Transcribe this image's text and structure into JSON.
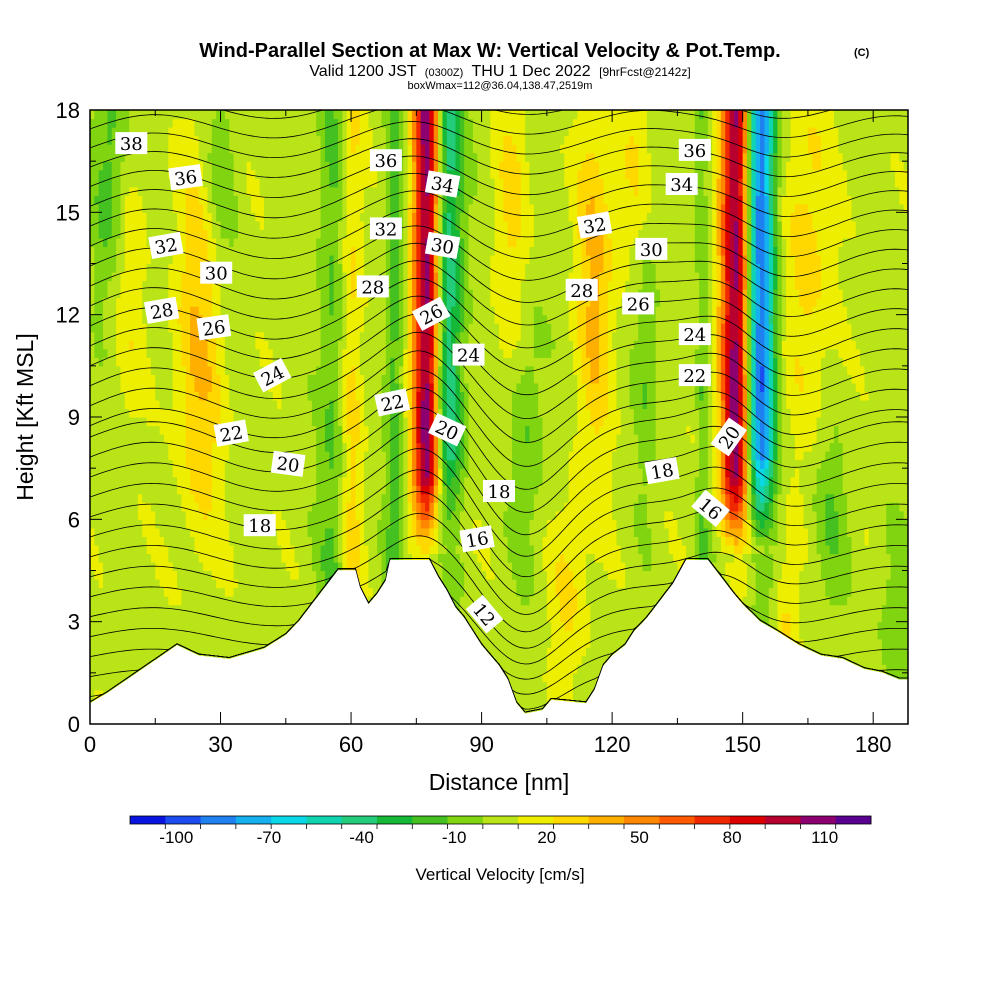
{
  "chart_data": {
    "type": "heatmap",
    "title": "Wind-Parallel Section at Max W: Vertical Velocity & Pot.Temp.",
    "title_mark": "(C)",
    "subtitle_main": "Valid 1200 JST",
    "subtitle_z": "(0300Z)",
    "subtitle_date": "THU 1 Dec 2022",
    "subtitle_fcst": "[9hrFcst@2142z]",
    "subtitle2": "boxWmax=112@36.04,138.47,2519m",
    "xlabel": "Distance [nm]",
    "ylabel": "Height [Kft MSL]",
    "xlim": [
      0,
      188
    ],
    "ylim": [
      0,
      18
    ],
    "xticks": [
      "0",
      "30",
      "60",
      "90",
      "120",
      "150",
      "180"
    ],
    "yticks": [
      "0",
      "3",
      "6",
      "9",
      "12",
      "15",
      "18"
    ],
    "xtick_values": [
      0,
      30,
      60,
      90,
      120,
      150,
      180
    ],
    "ytick_values": [
      0,
      3,
      6,
      9,
      12,
      15,
      18
    ],
    "colorbar": {
      "title": "Vertical Velocity [cm/s]",
      "range": [
        -115,
        125
      ],
      "labels": [
        "-100",
        "-70",
        "-40",
        "-10",
        "20",
        "50",
        "80",
        "110"
      ],
      "label_values": [
        -100,
        -70,
        -40,
        -10,
        20,
        50,
        80,
        110
      ],
      "colors": [
        "#0a14e0",
        "#1a4cf0",
        "#1f80f0",
        "#14b0f0",
        "#0ad8e6",
        "#10d4b0",
        "#22cc7a",
        "#16b838",
        "#44c020",
        "#80d410",
        "#b8e418",
        "#eeee00",
        "#ffd800",
        "#ffaf00",
        "#ff8700",
        "#ff5a00",
        "#f02800",
        "#dc0000",
        "#b80030",
        "#8c0070",
        "#5a0090"
      ]
    },
    "terrain": [
      [
        0,
        0.6
      ],
      [
        4,
        0.9
      ],
      [
        8,
        1.25
      ],
      [
        12,
        1.6
      ],
      [
        16,
        1.95
      ],
      [
        20,
        2.3
      ],
      [
        25,
        2.0
      ],
      [
        32,
        1.9
      ],
      [
        40,
        2.2
      ],
      [
        45,
        2.6
      ],
      [
        48,
        3.0
      ],
      [
        51,
        3.5
      ],
      [
        54,
        4.0
      ],
      [
        57,
        4.5
      ],
      [
        61,
        4.5
      ],
      [
        62,
        4.0
      ],
      [
        64,
        3.5
      ],
      [
        66,
        3.8
      ],
      [
        68,
        4.2
      ],
      [
        69,
        4.8
      ],
      [
        78,
        4.8
      ],
      [
        80,
        4.3
      ],
      [
        82,
        3.9
      ],
      [
        84,
        3.4
      ],
      [
        86,
        3.1
      ],
      [
        88,
        2.7
      ],
      [
        90,
        2.3
      ],
      [
        92,
        2.0
      ],
      [
        94,
        1.7
      ],
      [
        96,
        1.3
      ],
      [
        98,
        0.6
      ],
      [
        100,
        0.3
      ],
      [
        104,
        0.4
      ],
      [
        106,
        0.7
      ],
      [
        110,
        0.65
      ],
      [
        114,
        0.6
      ],
      [
        116,
        1.0
      ],
      [
        118,
        1.7
      ],
      [
        120,
        2.0
      ],
      [
        123,
        2.3
      ],
      [
        125,
        2.7
      ],
      [
        128,
        3.1
      ],
      [
        131,
        3.6
      ],
      [
        134,
        4.1
      ],
      [
        137,
        4.8
      ],
      [
        142,
        4.8
      ],
      [
        145,
        4.3
      ],
      [
        148,
        3.8
      ],
      [
        150,
        3.5
      ],
      [
        154,
        3.0
      ],
      [
        158,
        2.7
      ],
      [
        163,
        2.3
      ],
      [
        168,
        2.0
      ],
      [
        173,
        1.9
      ],
      [
        178,
        1.6
      ],
      [
        182,
        1.5
      ],
      [
        186,
        1.3
      ],
      [
        188,
        1.3
      ]
    ],
    "updrafts": [
      {
        "center_x": 77.5,
        "peak_cm_s": 112,
        "width_nm": 2.2
      },
      {
        "center_x": 148.5,
        "peak_cm_s": 105,
        "width_nm": 2.4
      }
    ],
    "downdrafts": [
      {
        "center_x": 82,
        "min_cm_s": -55,
        "width_nm": 2.6
      },
      {
        "center_x": 154,
        "min_cm_s": -100,
        "width_nm": 2.4
      }
    ],
    "contour_labels": [
      {
        "text": "38",
        "x": 9.5,
        "y": 17.0,
        "angle": 0
      },
      {
        "text": "36",
        "x": 22,
        "y": 16.0,
        "angle": -8
      },
      {
        "text": "32",
        "x": 17.5,
        "y": 14.0,
        "angle": -10
      },
      {
        "text": "30",
        "x": 29,
        "y": 13.2,
        "angle": 0
      },
      {
        "text": "28",
        "x": 16.5,
        "y": 12.1,
        "angle": -10
      },
      {
        "text": "26",
        "x": 28.5,
        "y": 11.6,
        "angle": -8
      },
      {
        "text": "24",
        "x": 42,
        "y": 10.2,
        "angle": -28
      },
      {
        "text": "22",
        "x": 32.5,
        "y": 8.5,
        "angle": -10
      },
      {
        "text": "20",
        "x": 45.5,
        "y": 7.6,
        "angle": 8
      },
      {
        "text": "18",
        "x": 39,
        "y": 5.8,
        "angle": 0
      },
      {
        "text": "36",
        "x": 68,
        "y": 16.5,
        "angle": 0
      },
      {
        "text": "32",
        "x": 68,
        "y": 14.5,
        "angle": 0
      },
      {
        "text": "28",
        "x": 65,
        "y": 12.8,
        "angle": 0
      },
      {
        "text": "22",
        "x": 69.5,
        "y": 9.4,
        "angle": -12
      },
      {
        "text": "34",
        "x": 81,
        "y": 15.8,
        "angle": 10
      },
      {
        "text": "30",
        "x": 81,
        "y": 14.0,
        "angle": 10
      },
      {
        "text": "26",
        "x": 78.5,
        "y": 12.0,
        "angle": -28
      },
      {
        "text": "24",
        "x": 87,
        "y": 10.8,
        "angle": 0
      },
      {
        "text": "20",
        "x": 82,
        "y": 8.6,
        "angle": 25
      },
      {
        "text": "18",
        "x": 94,
        "y": 6.8,
        "angle": 0
      },
      {
        "text": "16",
        "x": 89,
        "y": 5.4,
        "angle": -10
      },
      {
        "text": "12",
        "x": 90.5,
        "y": 3.2,
        "angle": 50
      },
      {
        "text": "32",
        "x": 116,
        "y": 14.6,
        "angle": -10
      },
      {
        "text": "30",
        "x": 129,
        "y": 13.9,
        "angle": 0
      },
      {
        "text": "28",
        "x": 113,
        "y": 12.7,
        "angle": 0
      },
      {
        "text": "26",
        "x": 126,
        "y": 12.3,
        "angle": 0
      },
      {
        "text": "36",
        "x": 139,
        "y": 16.8,
        "angle": 0
      },
      {
        "text": "34",
        "x": 136,
        "y": 15.8,
        "angle": 0
      },
      {
        "text": "24",
        "x": 139,
        "y": 11.4,
        "angle": 0
      },
      {
        "text": "22",
        "x": 139,
        "y": 10.2,
        "angle": 0
      },
      {
        "text": "18",
        "x": 131.5,
        "y": 7.4,
        "angle": -10
      },
      {
        "text": "20",
        "x": 147,
        "y": 8.4,
        "angle": -55
      },
      {
        "text": "16",
        "x": 142.5,
        "y": 6.3,
        "angle": 40
      }
    ]
  }
}
